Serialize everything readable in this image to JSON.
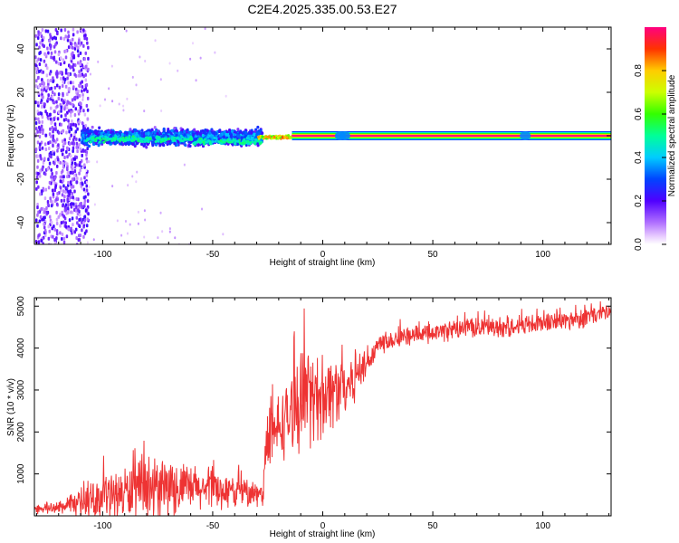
{
  "page_title": "C2E4.2025.335.00.53.E27",
  "chart_data": [
    {
      "type": "heatmap",
      "title": "C2E4.2025.335.00.53.E27",
      "xlabel": "Height of straight line (km)",
      "ylabel": "Frequency (Hz)",
      "xlim": [
        -131,
        131
      ],
      "ylim": [
        -50,
        50
      ],
      "xticks": [
        -100,
        -50,
        0,
        50,
        100
      ],
      "xtick_labels": [
        "-100",
        "-50",
        "0",
        "50",
        "100"
      ],
      "yticks": [
        -40,
        -20,
        0,
        20,
        40
      ],
      "ytick_labels": [
        "-40",
        "-20",
        "0",
        "20",
        "40"
      ],
      "colorbar": {
        "label": "Normalized spectral amplitude",
        "range": [
          0,
          1
        ],
        "ticks": [
          0.0,
          0.2,
          0.4,
          0.6,
          0.8
        ],
        "tick_labels": [
          "0.0",
          "0.2",
          "0.4",
          "0.6",
          "0.8"
        ],
        "colormap": "rainbow"
      },
      "regions": [
        {
          "x_range": [
            -131,
            -108
          ],
          "freq_range": [
            -50,
            50
          ],
          "amplitude": 0.08,
          "description": "sparse broadband noise"
        },
        {
          "x_range": [
            -110,
            -28
          ],
          "freq_range": [
            -8,
            8
          ],
          "amplitude": 0.25,
          "description": "broad spectral band"
        },
        {
          "x_range": [
            -28,
            -14
          ],
          "freq_range": [
            -2,
            2
          ],
          "amplitude": 0.7
        },
        {
          "x_range": [
            -14,
            131
          ],
          "freq_range": [
            -1,
            1
          ],
          "amplitude": 1.0,
          "description": "narrow tone near 0 Hz"
        }
      ]
    },
    {
      "type": "line",
      "title": "",
      "xlabel": "Height of straight line (km)",
      "ylabel": "SNR (10 * v/v)",
      "xlim": [
        -131,
        131
      ],
      "ylim": [
        0,
        5200
      ],
      "xticks": [
        -100,
        -50,
        0,
        50,
        100
      ],
      "xtick_labels": [
        "-100",
        "-50",
        "0",
        "50",
        "100"
      ],
      "yticks": [
        1000,
        2000,
        3000,
        4000,
        5000
      ],
      "ytick_labels": [
        "1000",
        "2000",
        "3000",
        "4000",
        "5000"
      ],
      "series": [
        {
          "name": "SNR",
          "color": "#ee3333",
          "x": [
            -131,
            -120,
            -110,
            -100,
            -90,
            -80,
            -70,
            -60,
            -50,
            -40,
            -30,
            -27,
            -26,
            -20,
            -15,
            -10,
            -5,
            0,
            5,
            10,
            15,
            20,
            25,
            30,
            40,
            50,
            60,
            70,
            80,
            90,
            100,
            110,
            120,
            131
          ],
          "mean": [
            150,
            200,
            300,
            450,
            550,
            600,
            650,
            650,
            620,
            580,
            520,
            480,
            1600,
            2100,
            2400,
            2700,
            2800,
            2900,
            3000,
            3100,
            3300,
            3700,
            4050,
            4200,
            4300,
            4350,
            4450,
            4500,
            4500,
            4550,
            4600,
            4650,
            4750,
            4850
          ],
          "spread": [
            80,
            120,
            250,
            400,
            500,
            650,
            550,
            450,
            400,
            300,
            250,
            200,
            600,
            650,
            700,
            900,
            900,
            800,
            700,
            600,
            450,
            350,
            250,
            200,
            180,
            180,
            200,
            200,
            200,
            200,
            200,
            200,
            200,
            200
          ]
        }
      ]
    }
  ]
}
